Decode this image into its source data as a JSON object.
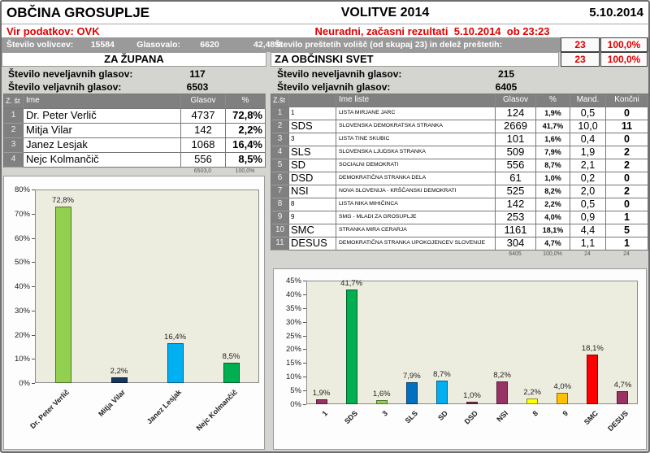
{
  "page": {
    "municipality": "OBČINA GROSUPLJE",
    "title": "VOLITVE 2014",
    "date": "5.10.2014",
    "source": "Vir podatkov: OVK",
    "status": "Neuradni, začasni rezultati  5.10.2014  ob 23:23",
    "voters_label": "Število volivcev:",
    "voters": "15584",
    "voted_label": "Glasovalo:",
    "voted": "6620",
    "turnout": "42,48%",
    "counted_label": "Število preštetih volišč (od skupaj 23) in delež preštetih:",
    "counted": "23",
    "counted_pct": "100,0%"
  },
  "mayor": {
    "section_title": "ZA ŽUPANA",
    "invalid_label": "Število neveljavnih glasov:",
    "invalid": "117",
    "valid_label": "Število veljavnih glasov:",
    "valid": "6503",
    "columns": [
      "Z. št",
      "Ime",
      "Glasov",
      "%"
    ],
    "rows": [
      {
        "num": "1",
        "name": "Dr. Peter Verlič",
        "votes": "4737",
        "pct": "72,8%"
      },
      {
        "num": "2",
        "name": "Mitja Vilar",
        "votes": "142",
        "pct": "2,2%"
      },
      {
        "num": "3",
        "name": "Janez Lesjak",
        "votes": "1068",
        "pct": "16,4%"
      },
      {
        "num": "4",
        "name": "Nejc Kolmančič",
        "votes": "556",
        "pct": "8,5%"
      }
    ],
    "totals": {
      "votes": "6503,0",
      "pct": "100,0%"
    }
  },
  "council": {
    "section_title": "ZA OBČINSKI SVET",
    "invalid_label": "Število neveljavnih glasov:",
    "invalid": "215",
    "valid_label": "Število veljavnih glasov:",
    "valid": "6405",
    "columns": [
      "Z.št",
      "Ime liste",
      "Glasov",
      "%",
      "Mand.",
      "Končni"
    ],
    "rows": [
      {
        "num": "1",
        "short": "1",
        "name": "LISTA MIRJANE JARC",
        "votes": "124",
        "pct": "1,9%",
        "mand": "0,5",
        "final": "0"
      },
      {
        "num": "2",
        "short": "SDS",
        "name": "SLOVENSKA DEMOKRATSKA STRANKA",
        "votes": "2669",
        "pct": "41,7%",
        "mand": "10,0",
        "final": "11"
      },
      {
        "num": "3",
        "short": "3",
        "name": "LISTA TINE SKUBIC",
        "votes": "101",
        "pct": "1,6%",
        "mand": "0,4",
        "final": "0"
      },
      {
        "num": "4",
        "short": "SLS",
        "name": "SLOVENSKA LJUDSKA STRANKA",
        "votes": "509",
        "pct": "7,9%",
        "mand": "1,9",
        "final": "2"
      },
      {
        "num": "5",
        "short": "SD",
        "name": "SOCIALNI DEMOKRATI",
        "votes": "556",
        "pct": "8,7%",
        "mand": "2,1",
        "final": "2"
      },
      {
        "num": "6",
        "short": "DSD",
        "name": "DEMOKRATIČNA STRANKA DELA",
        "votes": "61",
        "pct": "1,0%",
        "mand": "0,2",
        "final": "0"
      },
      {
        "num": "7",
        "short": "NSI",
        "name": "NOVA SLOVENIJA - KRŠČANSKI DEMOKRATI",
        "votes": "525",
        "pct": "8,2%",
        "mand": "2,0",
        "final": "2"
      },
      {
        "num": "8",
        "short": "8",
        "name": "LISTA NIKA MIHIČINCA",
        "votes": "142",
        "pct": "2,2%",
        "mand": "0,5",
        "final": "0"
      },
      {
        "num": "9",
        "short": "9",
        "name": "SMG - MLADI ZA GROSUPLJE",
        "votes": "253",
        "pct": "4,0%",
        "mand": "0,9",
        "final": "1"
      },
      {
        "num": "10",
        "short": "SMC",
        "name": "STRANKA MIRA CERARJA",
        "votes": "1161",
        "pct": "18,1%",
        "mand": "4,4",
        "final": "5"
      },
      {
        "num": "11",
        "short": "DESUS",
        "name": "DEMOKRATIČNA STRANKA UPOKOJENCEV SLOVENIJE",
        "votes": "304",
        "pct": "4,7%",
        "mand": "1,1",
        "final": "1"
      }
    ],
    "totals": {
      "votes": "6405",
      "pct": "100,0%",
      "mand": "24",
      "final": "24"
    }
  },
  "chart_data": [
    {
      "type": "bar",
      "title": "",
      "categories": [
        "Dr. Peter Verlič",
        "Mitja Vilar",
        "Janez Lesjak",
        "Nejc Kolmančič"
      ],
      "values": [
        72.8,
        2.2,
        16.4,
        8.5
      ],
      "labels": [
        "72,8%",
        "2,2%",
        "16,4%",
        "8,5%"
      ],
      "colors": [
        "#92D050",
        "#17375E",
        "#00B0F0",
        "#00B050"
      ],
      "xlabel": "",
      "ylabel": "",
      "ylim": [
        0,
        80
      ],
      "ytick_step": 10,
      "ytick_suffix": "%",
      "grid": false,
      "legend": "none"
    },
    {
      "type": "bar",
      "title": "",
      "categories": [
        "1",
        "SDS",
        "3",
        "SLS",
        "SD",
        "DSD",
        "NSI",
        "8",
        "9",
        "SMC",
        "DESUS"
      ],
      "values": [
        1.9,
        41.7,
        1.6,
        7.9,
        8.7,
        1.0,
        8.2,
        2.2,
        4.0,
        18.1,
        4.7
      ],
      "labels": [
        "1,9%",
        "41,7%",
        "1,6%",
        "7,9%",
        "8,7%",
        "1,0%",
        "8,2%",
        "2,2%",
        "4,0%",
        "18,1%",
        "4,7%"
      ],
      "colors": [
        "#993366",
        "#00B050",
        "#92D050",
        "#0070C0",
        "#00B0F0",
        "#7D3553",
        "#993366",
        "#FFFF00",
        "#FFC000",
        "#FF0000",
        "#993366"
      ],
      "xlabel": "",
      "ylabel": "",
      "ylim": [
        0,
        45
      ],
      "ytick_step": 5,
      "ytick_suffix": "%",
      "grid": false,
      "legend": "none"
    }
  ]
}
